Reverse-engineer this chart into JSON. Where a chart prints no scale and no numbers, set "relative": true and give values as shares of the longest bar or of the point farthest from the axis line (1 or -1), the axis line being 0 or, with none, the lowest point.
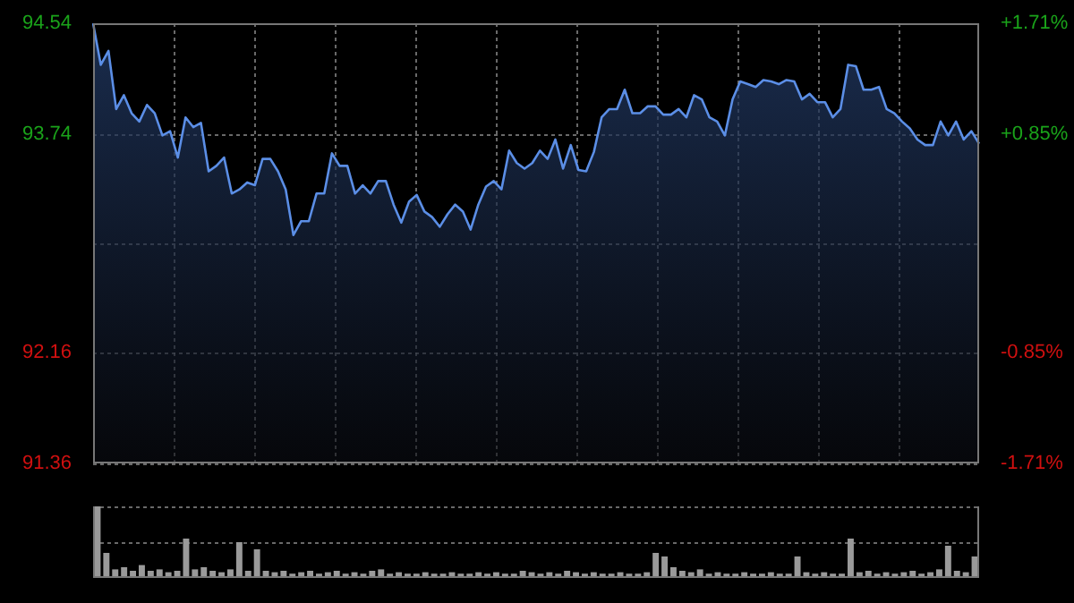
{
  "chart_data": [
    {
      "type": "area",
      "categories": [
        null,
        null,
        null,
        null,
        null,
        null,
        null,
        null,
        null,
        null,
        null,
        null,
        null,
        null,
        null,
        null,
        null,
        null,
        null,
        null,
        null,
        null,
        null,
        null,
        null,
        null,
        null,
        null,
        null,
        null,
        null,
        null,
        null,
        null,
        null,
        null,
        null,
        null,
        null,
        null,
        null,
        null,
        null,
        null,
        null,
        null,
        null,
        null,
        null,
        null,
        null,
        null,
        null,
        null,
        null,
        null,
        null,
        null,
        null,
        null,
        null,
        null,
        null,
        null,
        null,
        null,
        null,
        null,
        null,
        null,
        null,
        null,
        null,
        null,
        null,
        null,
        null,
        null,
        null,
        null,
        null,
        null,
        null,
        null,
        null,
        null,
        null,
        null,
        null,
        null,
        null,
        null,
        null,
        null,
        null,
        null,
        null,
        null,
        null,
        null,
        null,
        null,
        null,
        null,
        null,
        null,
        null,
        null,
        null,
        null,
        null,
        null,
        null,
        null,
        null,
        null
      ],
      "series": [
        {
          "color": "#5b8ee6",
          "values": [
            94.54,
            94.24,
            94.34,
            93.92,
            94.02,
            93.89,
            93.83,
            93.95,
            93.89,
            93.73,
            93.76,
            93.57,
            93.86,
            93.79,
            93.82,
            93.47,
            93.51,
            93.57,
            93.31,
            93.34,
            93.39,
            93.37,
            93.56,
            93.56,
            93.47,
            93.34,
            93.01,
            93.11,
            93.11,
            93.31,
            93.31,
            93.6,
            93.51,
            93.51,
            93.31,
            93.37,
            93.31,
            93.4,
            93.4,
            93.23,
            93.1,
            93.25,
            93.3,
            93.18,
            93.14,
            93.07,
            93.16,
            93.23,
            93.18,
            93.05,
            93.23,
            93.36,
            93.4,
            93.34,
            93.62,
            93.53,
            93.49,
            93.53,
            93.62,
            93.56,
            93.7,
            93.49,
            93.66,
            93.48,
            93.47,
            93.61,
            93.86,
            93.92,
            93.92,
            94.06,
            93.89,
            93.89,
            93.94,
            93.94,
            93.88,
            93.88,
            93.92,
            93.86,
            94.02,
            93.99,
            93.86,
            93.83,
            93.73,
            93.99,
            94.12,
            94.1,
            94.08,
            94.13,
            94.12,
            94.1,
            94.13,
            94.12,
            93.99,
            94.03,
            93.97,
            93.97,
            93.86,
            93.92,
            94.24,
            94.23,
            94.06,
            94.06,
            94.08,
            93.92,
            93.89,
            93.83,
            93.78,
            93.7,
            93.66,
            93.66,
            93.83,
            93.73,
            93.83,
            93.7,
            93.76,
            93.67
          ]
        }
      ],
      "ylim": [
        91.36,
        94.54
      ],
      "yticks": [
        91.36,
        92.16,
        {
          "value": 92.95,
          "label": null
        },
        93.74,
        94.54
      ],
      "y2lim": [
        -1.71,
        1.71
      ],
      "y2ticks": [
        {
          "value": -1.71,
          "label": "-1.71%"
        },
        {
          "value": -0.85,
          "label": "-0.85%"
        },
        {
          "value": 0.85,
          "label": "+0.85%"
        },
        {
          "value": 1.71,
          "label": "+1.71%"
        }
      ],
      "grid": true,
      "legend": false,
      "tick_labels": "y"
    },
    {
      "type": "bar",
      "relative": true,
      "categories": [
        null,
        null,
        null,
        null,
        null,
        null,
        null,
        null,
        null,
        null,
        null,
        null,
        null,
        null,
        null,
        null,
        null,
        null,
        null,
        null,
        null,
        null,
        null,
        null,
        null,
        null,
        null,
        null,
        null,
        null,
        null,
        null,
        null,
        null,
        null,
        null,
        null,
        null,
        null,
        null,
        null,
        null,
        null,
        null,
        null,
        null,
        null,
        null,
        null,
        null,
        null,
        null,
        null,
        null,
        null,
        null,
        null,
        null,
        null,
        null,
        null,
        null,
        null,
        null,
        null,
        null,
        null,
        null,
        null,
        null,
        null,
        null,
        null,
        null,
        null,
        null,
        null,
        null,
        null,
        null,
        null,
        null,
        null,
        null,
        null,
        null,
        null,
        null,
        null,
        null,
        null,
        null,
        null,
        null,
        null,
        null,
        null,
        null,
        null,
        null
      ],
      "series": [
        {
          "color": "#9a9a9a",
          "values": [
            1,
            0.35,
            0.12,
            0.15,
            0.1,
            0.18,
            0.1,
            0.12,
            0.08,
            0.1,
            0.55,
            0.12,
            0.15,
            0.1,
            0.08,
            0.12,
            0.5,
            0.1,
            0.4,
            0.1,
            0.08,
            0.1,
            0.06,
            0.08,
            0.1,
            0.06,
            0.08,
            0.1,
            0.06,
            0.08,
            0.06,
            0.1,
            0.12,
            0.06,
            0.08,
            0.06,
            0.06,
            0.08,
            0.06,
            0.06,
            0.08,
            0.06,
            0.06,
            0.08,
            0.06,
            0.08,
            0.06,
            0.06,
            0.1,
            0.08,
            0.06,
            0.08,
            0.06,
            0.1,
            0.08,
            0.06,
            0.08,
            0.06,
            0.06,
            0.08,
            0.06,
            0.06,
            0.08,
            0.35,
            0.3,
            0.15,
            0.1,
            0.08,
            0.12,
            0.06,
            0.08,
            0.06,
            0.06,
            0.08,
            0.06,
            0.06,
            0.08,
            0.06,
            0.06,
            0.3,
            0.08,
            0.06,
            0.08,
            0.06,
            0.06,
            0.55,
            0.08,
            0.1,
            0.06,
            0.08,
            0.06,
            0.08,
            0.1,
            0.06,
            0.08,
            0.12,
            0.45,
            0.1,
            0.08,
            0.3
          ]
        }
      ],
      "ref_lines": [
        {
          "axis": "y",
          "value": 0.5,
          "line_style": "dotted"
        },
        {
          "axis": "y",
          "value": 1,
          "line_style": "dotted"
        }
      ],
      "legend": false,
      "tick_labels": false
    }
  ]
}
